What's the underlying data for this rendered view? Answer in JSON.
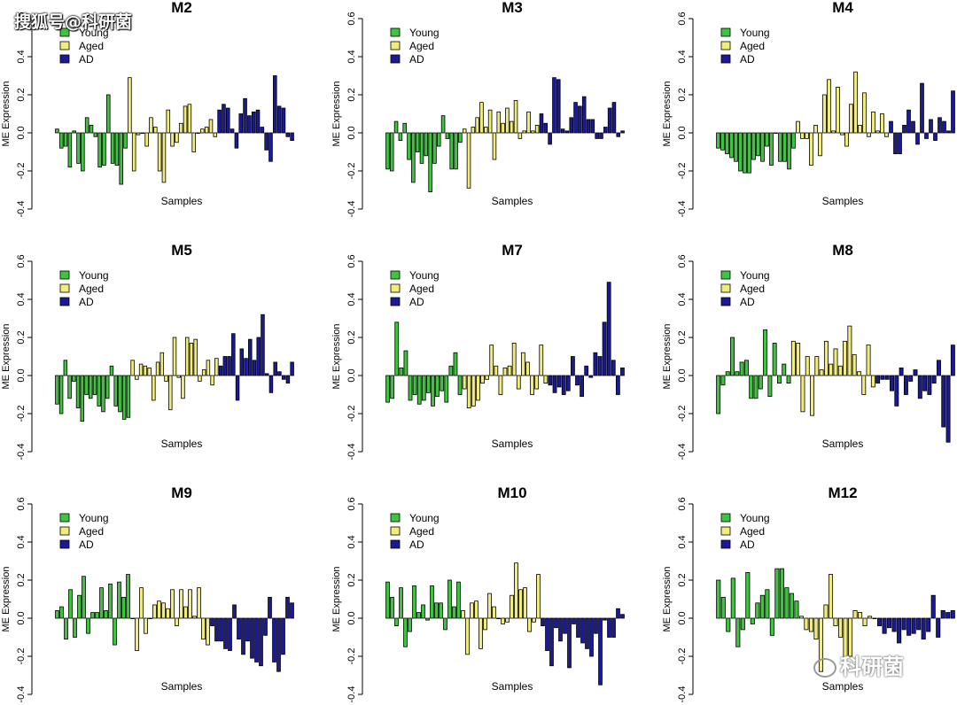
{
  "watermark_top": "搜狐号@科研菌",
  "watermark_bottom": "科研菌",
  "colors": {
    "Young": "#3fc43f",
    "Aged": "#f2ec7a",
    "AD": "#1a1a99",
    "stroke": "#000000"
  },
  "chart_data": [
    {
      "type": "bar",
      "title": "M2",
      "xlabel": "Samples",
      "ylabel": "ME Expression",
      "ylim": [
        -0.4,
        0.6
      ],
      "yticks": [
        "-0.4",
        "-0.2",
        "0.0",
        "0.2",
        "0.4",
        "0.6"
      ],
      "legend": [
        "Young",
        "Aged",
        "AD"
      ],
      "series": [
        {
          "name": "Young",
          "values": [
            0.02,
            -0.08,
            -0.07,
            -0.18,
            0.01,
            -0.16,
            -0.2,
            0.08,
            0.04,
            -0.02,
            -0.18,
            -0.17,
            0.2,
            -0.16,
            -0.17,
            -0.27,
            -0.08
          ]
        },
        {
          "name": "Aged",
          "values": [
            0.29,
            -0.2,
            -0.01,
            0.0,
            -0.07,
            0.08,
            0.03,
            -0.2,
            -0.26,
            0.12,
            -0.07,
            -0.05,
            0.05,
            0.14,
            0.15,
            -0.1,
            0.0,
            0.02,
            0.03,
            0.07,
            -0.02
          ]
        },
        {
          "name": "AD",
          "values": [
            0.12,
            0.15,
            0.13,
            0.02,
            -0.08,
            0.1,
            0.18,
            0.09,
            0.11,
            0.12,
            0.03,
            -0.09,
            -0.15,
            0.3,
            0.14,
            0.13,
            -0.02,
            -0.04
          ]
        }
      ]
    },
    {
      "type": "bar",
      "title": "M3",
      "xlabel": "Samples",
      "ylabel": "ME Expression",
      "ylim": [
        -0.4,
        0.6
      ],
      "yticks": [
        "-0.4",
        "-0.2",
        "0.0",
        "0.2",
        "0.4",
        "0.6"
      ],
      "legend": [
        "Young",
        "Aged",
        "AD"
      ],
      "series": [
        {
          "name": "Young",
          "values": [
            -0.19,
            -0.2,
            0.06,
            -0.04,
            0.05,
            -0.14,
            -0.26,
            -0.1,
            -0.16,
            -0.12,
            -0.31,
            -0.16,
            -0.07,
            0.09,
            -0.03,
            -0.19,
            -0.19,
            -0.05
          ]
        },
        {
          "name": "Aged",
          "values": [
            0.02,
            -0.29,
            0.03,
            0.08,
            0.16,
            0.03,
            0.12,
            -0.14,
            0.11,
            0.05,
            0.13,
            0.06,
            0.17,
            -0.03,
            0.01,
            0.11,
            0.01,
            0.04
          ]
        },
        {
          "name": "AD",
          "values": [
            0.1,
            0.05,
            -0.06,
            0.29,
            0.28,
            0.02,
            0.01,
            0.08,
            0.16,
            0.14,
            0.19,
            0.07,
            0.07,
            -0.03,
            -0.03,
            0.03,
            0.13,
            0.16,
            -0.02,
            0.01
          ]
        }
      ]
    },
    {
      "type": "bar",
      "title": "M4",
      "xlabel": "Samples",
      "ylabel": "ME Expression",
      "ylim": [
        -0.4,
        0.6
      ],
      "yticks": [
        "-0.4",
        "-0.2",
        "0.0",
        "0.2",
        "0.4",
        "0.6"
      ],
      "legend": [
        "Young",
        "Aged",
        "AD"
      ],
      "series": [
        {
          "name": "Young",
          "values": [
            -0.08,
            -0.09,
            -0.11,
            -0.13,
            -0.15,
            -0.2,
            -0.21,
            -0.21,
            -0.14,
            -0.12,
            -0.15,
            -0.07,
            -0.17,
            0.0,
            -0.15,
            -0.15,
            -0.19,
            -0.08
          ]
        },
        {
          "name": "Aged",
          "values": [
            0.06,
            -0.03,
            -0.03,
            -0.17,
            0.04,
            -0.12,
            0.2,
            0.28,
            0.01,
            0.24,
            -0.01,
            -0.07,
            0.15,
            0.32,
            0.04,
            0.21,
            -0.02,
            0.11,
            0.01,
            0.1,
            -0.02
          ]
        },
        {
          "name": "AD",
          "values": [
            0.06,
            -0.11,
            -0.11,
            0.04,
            0.12,
            0.06,
            -0.06,
            0.26,
            -0.03,
            0.07,
            -0.04,
            0.08,
            0.06,
            0.01,
            0.22
          ]
        }
      ]
    },
    {
      "type": "bar",
      "title": "M5",
      "xlabel": "Samples",
      "ylabel": "ME Expression",
      "ylim": [
        -0.4,
        0.6
      ],
      "yticks": [
        "-0.4",
        "-0.2",
        "0.0",
        "0.2",
        "0.4",
        "0.6"
      ],
      "legend": [
        "Young",
        "Aged",
        "AD"
      ],
      "series": [
        {
          "name": "Young",
          "values": [
            -0.15,
            -0.2,
            0.08,
            -0.12,
            -0.03,
            -0.17,
            -0.24,
            -0.1,
            -0.12,
            -0.1,
            -0.16,
            -0.19,
            -0.12,
            0.05,
            -0.16,
            -0.19,
            -0.23,
            -0.22
          ]
        },
        {
          "name": "Aged",
          "values": [
            0.08,
            -0.02,
            0.06,
            0.05,
            0.04,
            -0.13,
            0.07,
            0.12,
            -0.03,
            -0.18,
            0.2,
            -0.01,
            -0.12,
            0.2,
            0.17,
            0.19,
            -0.03,
            0.03,
            0.08,
            -0.05,
            0.09
          ]
        },
        {
          "name": "AD",
          "values": [
            0.05,
            0.1,
            0.1,
            0.22,
            -0.13,
            0.14,
            0.09,
            0.19,
            0.08,
            0.2,
            0.32,
            0.01,
            -0.09,
            0.07,
            0.02,
            -0.02,
            -0.04,
            0.07
          ]
        }
      ]
    },
    {
      "type": "bar",
      "title": "M7",
      "xlabel": "Samples",
      "ylabel": "ME Expression",
      "ylim": [
        -0.4,
        0.6
      ],
      "yticks": [
        "-0.4",
        "-0.2",
        "0.0",
        "0.2",
        "0.4",
        "0.6"
      ],
      "legend": [
        "Young",
        "Aged",
        "AD"
      ],
      "series": [
        {
          "name": "Young",
          "values": [
            -0.14,
            -0.12,
            0.28,
            0.04,
            0.13,
            -0.13,
            -0.1,
            -0.15,
            -0.13,
            -0.09,
            -0.16,
            -0.11,
            -0.08,
            -0.14,
            0.05,
            0.12,
            -0.1
          ]
        },
        {
          "name": "Aged",
          "values": [
            -0.07,
            -0.17,
            -0.16,
            -0.13,
            -0.04,
            -0.02,
            0.16,
            0.05,
            -0.1,
            0.04,
            0.05,
            0.17,
            -0.07,
            0.12,
            0.07,
            -0.1,
            -0.07,
            0.16,
            -0.04
          ]
        },
        {
          "name": "AD",
          "values": [
            -0.05,
            -0.09,
            -0.06,
            -0.1,
            -0.08,
            0.1,
            -0.05,
            -0.11,
            0.05,
            -0.01,
            0.12,
            0.1,
            0.28,
            0.49,
            0.08,
            -0.1,
            0.04
          ]
        }
      ]
    },
    {
      "type": "bar",
      "title": "M8",
      "xlabel": "Samples",
      "ylabel": "ME Expression",
      "ylim": [
        -0.4,
        0.6
      ],
      "yticks": [
        "-0.4",
        "-0.2",
        "0.0",
        "0.2",
        "0.4",
        "0.6"
      ],
      "legend": [
        "Young",
        "Aged",
        "AD"
      ],
      "series": [
        {
          "name": "Young",
          "values": [
            -0.2,
            -0.05,
            0.02,
            0.2,
            0.02,
            0.07,
            0.08,
            -0.12,
            -0.12,
            -0.07,
            0.24,
            -0.11,
            0.17,
            -0.04,
            0.06,
            -0.04
          ]
        },
        {
          "name": "Aged",
          "values": [
            0.18,
            0.17,
            -0.19,
            0.1,
            -0.21,
            0.1,
            0.03,
            0.18,
            0.06,
            0.14,
            0.05,
            0.18,
            0.26,
            0.11,
            0.02,
            -0.1,
            0.16,
            -0.06
          ]
        },
        {
          "name": "AD",
          "values": [
            -0.04,
            -0.02,
            -0.02,
            -0.08,
            -0.16,
            0.04,
            -0.1,
            -0.03,
            0.03,
            -0.12,
            -0.08,
            -0.1,
            -0.04,
            0.08,
            -0.27,
            -0.35,
            0.16
          ]
        }
      ]
    },
    {
      "type": "bar",
      "title": "M9",
      "xlabel": "Samples",
      "ylabel": "ME Expression",
      "ylim": [
        -0.4,
        0.6
      ],
      "yticks": [
        "-0.4",
        "-0.2",
        "0.0",
        "0.2",
        "0.4",
        "0.6"
      ],
      "legend": [
        "Young",
        "Aged",
        "AD"
      ],
      "series": [
        {
          "name": "Young",
          "values": [
            0.04,
            0.06,
            -0.11,
            0.15,
            -0.1,
            0.12,
            0.22,
            -0.08,
            0.03,
            0.03,
            0.16,
            0.04,
            0.18,
            -0.14,
            0.19,
            0.11,
            0.23,
            0.0
          ]
        },
        {
          "name": "Aged",
          "values": [
            -0.17,
            0.16,
            -0.08,
            0.0,
            0.07,
            0.09,
            0.08,
            0.05,
            0.15,
            -0.04,
            0.15,
            0.06,
            0.15,
            0.01,
            0.16,
            -0.11,
            -0.14
          ]
        },
        {
          "name": "AD",
          "values": [
            -0.04,
            -0.12,
            -0.12,
            -0.16,
            -0.17,
            0.07,
            -0.11,
            -0.19,
            -0.12,
            -0.21,
            -0.23,
            -0.25,
            -0.09,
            0.11,
            -0.23,
            -0.28,
            -0.19,
            0.11,
            0.08
          ]
        }
      ]
    },
    {
      "type": "bar",
      "title": "M10",
      "xlabel": "Samples",
      "ylabel": "ME Expression",
      "ylim": [
        -0.4,
        0.6
      ],
      "yticks": [
        "-0.4",
        "-0.2",
        "0.0",
        "0.2",
        "0.4",
        "0.6"
      ],
      "legend": [
        "Young",
        "Aged",
        "AD"
      ],
      "series": [
        {
          "name": "Young",
          "values": [
            0.19,
            0.11,
            -0.04,
            0.16,
            -0.15,
            -0.07,
            0.17,
            0.03,
            0.07,
            -0.01,
            0.17,
            0.08,
            0.08,
            -0.06,
            0.2,
            0.06,
            0.19
          ]
        },
        {
          "name": "Aged",
          "values": [
            0.04,
            -0.19,
            0.08,
            0.09,
            -0.16,
            -0.06,
            0.13,
            0.06,
            0.0,
            -0.03,
            -0.02,
            0.12,
            0.29,
            0.15,
            0.16,
            -0.07,
            -0.02,
            0.23
          ]
        },
        {
          "name": "AD",
          "values": [
            -0.04,
            -0.17,
            -0.25,
            -0.05,
            -0.12,
            -0.08,
            -0.26,
            -0.03,
            -0.1,
            -0.13,
            -0.16,
            -0.2,
            -0.08,
            -0.35,
            -0.01,
            -0.1,
            -0.1,
            0.05,
            0.02
          ]
        }
      ]
    },
    {
      "type": "bar",
      "title": "M12",
      "xlabel": "Samples",
      "ylabel": "ME Expression",
      "ylim": [
        -0.4,
        0.6
      ],
      "yticks": [
        "-0.4",
        "-0.2",
        "0.0",
        "0.2",
        "0.4",
        "0.6"
      ],
      "legend": [
        "Young",
        "Aged",
        "AD"
      ],
      "series": [
        {
          "name": "Young",
          "values": [
            0.2,
            0.11,
            -0.07,
            0.21,
            -0.15,
            -0.06,
            0.24,
            -0.03,
            0.08,
            0.12,
            0.15,
            -0.09,
            0.26,
            0.26,
            0.16,
            0.13,
            0.09
          ]
        },
        {
          "name": "Aged",
          "values": [
            0.01,
            -0.06,
            -0.07,
            -0.11,
            -0.28,
            0.07,
            0.23,
            -0.04,
            -0.1,
            -0.21,
            -0.2,
            0.04,
            0.03,
            -0.04,
            0.01,
            0.0
          ]
        },
        {
          "name": "AD",
          "values": [
            -0.04,
            -0.08,
            -0.05,
            -0.07,
            -0.13,
            -0.06,
            -0.09,
            -0.08,
            -0.06,
            -0.11,
            -0.07,
            0.12,
            -0.1,
            0.04,
            0.03,
            0.04
          ]
        }
      ]
    }
  ]
}
